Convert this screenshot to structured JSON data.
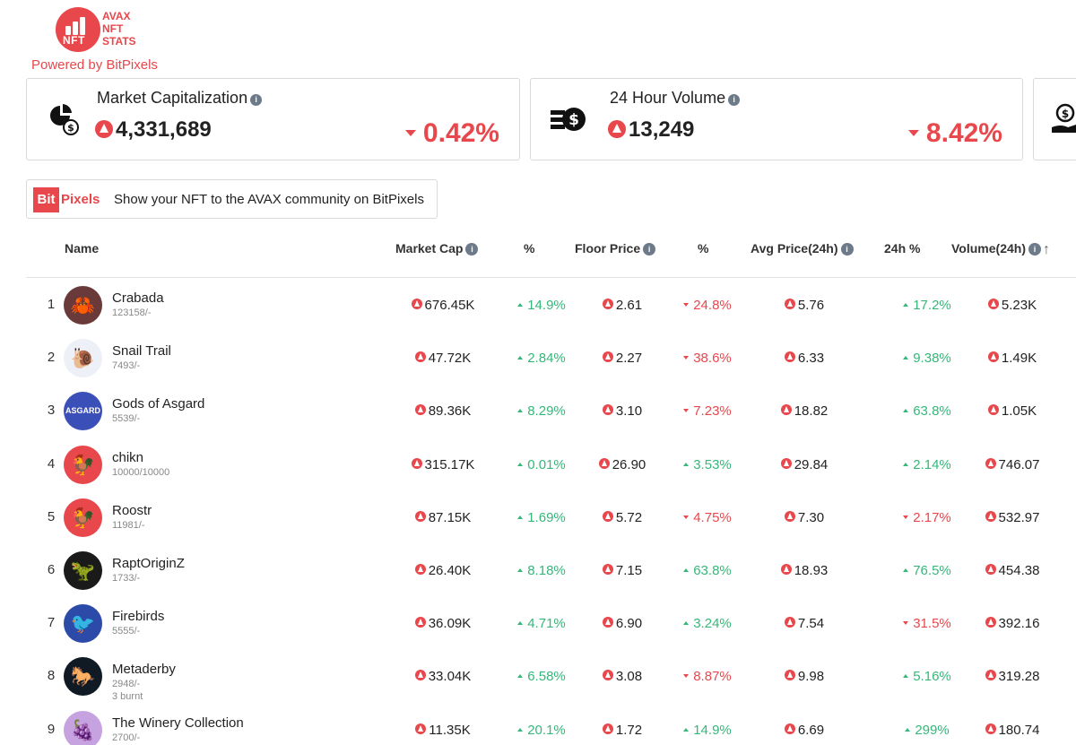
{
  "brand": {
    "logo_mark": "NFT",
    "logo_lines": [
      "AVAX",
      "NFT",
      "STATS"
    ],
    "powered_by": "Powered by BitPixels",
    "accent_color": "#e8474c"
  },
  "cards": [
    {
      "title": "Market Capitalization",
      "icon": "pie-coin-icon",
      "value": "4,331,689",
      "change": "0.42%",
      "direction": "down"
    },
    {
      "title": "24 Hour Volume",
      "icon": "cash-stack-icon",
      "value": "13,249",
      "change": "8.42%",
      "direction": "down"
    }
  ],
  "banner": {
    "logo_bit": "Bit",
    "logo_pixels": "Pixels",
    "text": "Show your NFT to the AVAX community on BitPixels"
  },
  "table": {
    "headers": {
      "name": "Name",
      "market_cap": "Market Cap",
      "mcap_pct": "%",
      "floor_price": "Floor Price",
      "floor_pct": "%",
      "avg_price": "Avg Price(24h)",
      "avg_pct": "24h %",
      "volume": "Volume(24h)"
    },
    "rows": [
      {
        "rank": "1",
        "name": "Crabada",
        "supply": "123158/-",
        "burnt": "",
        "market_cap": "676.45K",
        "mcap_pct": "14.9%",
        "mcap_dir": "up",
        "floor": "2.61",
        "floor_pct": "24.8%",
        "floor_dir": "down",
        "avg": "5.76",
        "avg_pct": "17.2%",
        "avg_dir": "up",
        "volume": "5.23K",
        "avatar_color": "#6a3a3a",
        "avatar_glyph": "🦀"
      },
      {
        "rank": "2",
        "name": "Snail Trail",
        "supply": "7493/-",
        "burnt": "",
        "market_cap": "47.72K",
        "mcap_pct": "2.84%",
        "mcap_dir": "up",
        "floor": "2.27",
        "floor_pct": "38.6%",
        "floor_dir": "down",
        "avg": "6.33",
        "avg_pct": "9.38%",
        "avg_dir": "up",
        "volume": "1.49K",
        "avatar_color": "#eef0f8",
        "avatar_glyph": "🐌"
      },
      {
        "rank": "3",
        "name": "Gods of Asgard",
        "supply": "5539/-",
        "burnt": "",
        "market_cap": "89.36K",
        "mcap_pct": "8.29%",
        "mcap_dir": "up",
        "floor": "3.10",
        "floor_pct": "7.23%",
        "floor_dir": "down",
        "avg": "18.82",
        "avg_pct": "63.8%",
        "avg_dir": "up",
        "volume": "1.05K",
        "avatar_color": "#3b4fb8",
        "avatar_glyph": "ASGARD"
      },
      {
        "rank": "4",
        "name": "chikn",
        "supply": "10000/10000",
        "burnt": "",
        "market_cap": "315.17K",
        "mcap_pct": "0.01%",
        "mcap_dir": "up",
        "floor": "26.90",
        "floor_pct": "3.53%",
        "floor_dir": "up",
        "avg": "29.84",
        "avg_pct": "2.14%",
        "avg_dir": "up",
        "volume": "746.07",
        "avatar_color": "#e8474c",
        "avatar_glyph": "🐓"
      },
      {
        "rank": "5",
        "name": "Roostr",
        "supply": "11981/-",
        "burnt": "",
        "market_cap": "87.15K",
        "mcap_pct": "1.69%",
        "mcap_dir": "up",
        "floor": "5.72",
        "floor_pct": "4.75%",
        "floor_dir": "down",
        "avg": "7.30",
        "avg_pct": "2.17%",
        "avg_dir": "down",
        "volume": "532.97",
        "avatar_color": "#e8474c",
        "avatar_glyph": "🐓"
      },
      {
        "rank": "6",
        "name": "RaptOriginZ",
        "supply": "1733/-",
        "burnt": "",
        "market_cap": "26.40K",
        "mcap_pct": "8.18%",
        "mcap_dir": "up",
        "floor": "7.15",
        "floor_pct": "63.8%",
        "floor_dir": "up",
        "avg": "18.93",
        "avg_pct": "76.5%",
        "avg_dir": "up",
        "volume": "454.38",
        "avatar_color": "#1a1a1a",
        "avatar_glyph": "🦖"
      },
      {
        "rank": "7",
        "name": "Firebirds",
        "supply": "5555/-",
        "burnt": "",
        "market_cap": "36.09K",
        "mcap_pct": "4.71%",
        "mcap_dir": "up",
        "floor": "6.90",
        "floor_pct": "3.24%",
        "floor_dir": "up",
        "avg": "7.54",
        "avg_pct": "31.5%",
        "avg_dir": "down",
        "volume": "392.16",
        "avatar_color": "#2c4aa8",
        "avatar_glyph": "🐦"
      },
      {
        "rank": "8",
        "name": "Metaderby",
        "supply": "2948/-",
        "burnt": "3 burnt",
        "market_cap": "33.04K",
        "mcap_pct": "6.58%",
        "mcap_dir": "up",
        "floor": "3.08",
        "floor_pct": "8.87%",
        "floor_dir": "down",
        "avg": "9.98",
        "avg_pct": "5.16%",
        "avg_dir": "up",
        "volume": "319.28",
        "avatar_color": "#0f1a24",
        "avatar_glyph": "🐎"
      },
      {
        "rank": "9",
        "name": "The Winery Collection",
        "supply": "2700/-",
        "burnt": "",
        "market_cap": "11.35K",
        "mcap_pct": "20.1%",
        "mcap_dir": "up",
        "floor": "1.72",
        "floor_pct": "14.9%",
        "floor_dir": "up",
        "avg": "6.69",
        "avg_pct": "299%",
        "avg_dir": "up",
        "volume": "180.74",
        "avatar_color": "#c6a2e0",
        "avatar_glyph": "🍇"
      }
    ]
  }
}
